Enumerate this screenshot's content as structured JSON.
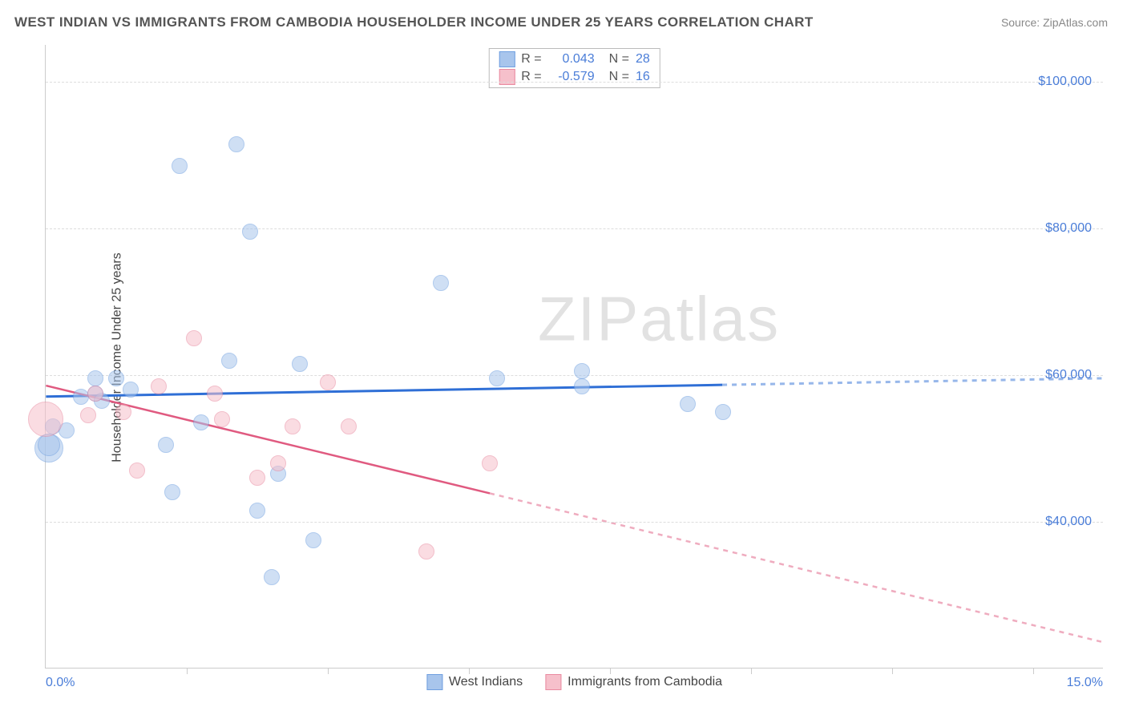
{
  "title": "WEST INDIAN VS IMMIGRANTS FROM CAMBODIA HOUSEHOLDER INCOME UNDER 25 YEARS CORRELATION CHART",
  "source": "Source: ZipAtlas.com",
  "watermark": "ZIPatlas",
  "y_axis_label": "Householder Income Under 25 years",
  "chart": {
    "type": "scatter",
    "xlim": [
      0,
      15
    ],
    "ylim": [
      20000,
      105000
    ],
    "y_ticks": [
      40000,
      60000,
      80000,
      100000
    ],
    "y_tick_labels": [
      "$40,000",
      "$60,000",
      "$80,000",
      "$100,000"
    ],
    "x_tick_left": "0.0%",
    "x_tick_right": "15.0%",
    "x_tick_marks": [
      2,
      4,
      6,
      8,
      10,
      12,
      14
    ],
    "grid_color": "#dddddd",
    "axis_color": "#cccccc",
    "background_color": "#ffffff",
    "tick_label_color": "#4a7dd8",
    "series": [
      {
        "name": "West Indians",
        "fill_color": "#a8c5ec",
        "stroke_color": "#6f9fe0",
        "fill_opacity": 0.55,
        "default_radius": 10,
        "points": [
          {
            "x": 0.05,
            "y": 50000,
            "r": 18
          },
          {
            "x": 0.05,
            "y": 50500,
            "r": 14
          },
          {
            "x": 0.1,
            "y": 53000
          },
          {
            "x": 0.3,
            "y": 52500
          },
          {
            "x": 0.5,
            "y": 57000
          },
          {
            "x": 0.7,
            "y": 57500
          },
          {
            "x": 0.8,
            "y": 56500
          },
          {
            "x": 0.7,
            "y": 59500
          },
          {
            "x": 1.0,
            "y": 59500
          },
          {
            "x": 1.2,
            "y": 58000
          },
          {
            "x": 1.7,
            "y": 50500
          },
          {
            "x": 1.8,
            "y": 44000
          },
          {
            "x": 1.9,
            "y": 88500
          },
          {
            "x": 2.2,
            "y": 53500
          },
          {
            "x": 2.6,
            "y": 62000
          },
          {
            "x": 2.7,
            "y": 91500
          },
          {
            "x": 2.9,
            "y": 79500
          },
          {
            "x": 3.0,
            "y": 41500
          },
          {
            "x": 3.2,
            "y": 32500
          },
          {
            "x": 3.3,
            "y": 46500
          },
          {
            "x": 3.6,
            "y": 61500
          },
          {
            "x": 3.8,
            "y": 37500
          },
          {
            "x": 5.6,
            "y": 72500
          },
          {
            "x": 6.4,
            "y": 59500
          },
          {
            "x": 7.6,
            "y": 58500
          },
          {
            "x": 7.6,
            "y": 60500
          },
          {
            "x": 9.1,
            "y": 56000
          },
          {
            "x": 9.6,
            "y": 55000
          }
        ],
        "trend": {
          "color": "#2f6fd6",
          "width": 3,
          "y_start": 57000,
          "y_end": 59500,
          "x_data_max": 9.6
        }
      },
      {
        "name": "Immigrants from Cambodia",
        "fill_color": "#f6c0cb",
        "stroke_color": "#e98aa0",
        "fill_opacity": 0.55,
        "default_radius": 10,
        "points": [
          {
            "x": 0.0,
            "y": 54000,
            "r": 22
          },
          {
            "x": 0.6,
            "y": 54500
          },
          {
            "x": 0.7,
            "y": 57500
          },
          {
            "x": 1.1,
            "y": 55000
          },
          {
            "x": 1.3,
            "y": 47000
          },
          {
            "x": 1.6,
            "y": 58500
          },
          {
            "x": 2.1,
            "y": 65000
          },
          {
            "x": 2.4,
            "y": 57500
          },
          {
            "x": 2.5,
            "y": 54000
          },
          {
            "x": 3.0,
            "y": 46000
          },
          {
            "x": 3.3,
            "y": 48000
          },
          {
            "x": 3.5,
            "y": 53000
          },
          {
            "x": 4.0,
            "y": 59000
          },
          {
            "x": 4.3,
            "y": 53000
          },
          {
            "x": 5.4,
            "y": 36000
          },
          {
            "x": 6.3,
            "y": 48000
          }
        ],
        "trend": {
          "color": "#e05a80",
          "width": 2.5,
          "y_start": 58500,
          "y_end": 23500,
          "x_data_max": 6.3
        }
      }
    ]
  },
  "stat_legend": [
    {
      "swatch_fill": "#a8c5ec",
      "swatch_stroke": "#6f9fe0",
      "r_label": "R =",
      "r_value": "0.043",
      "n_label": "N =",
      "n_value": "28"
    },
    {
      "swatch_fill": "#f6c0cb",
      "swatch_stroke": "#e98aa0",
      "r_label": "R =",
      "r_value": "-0.579",
      "n_label": "N =",
      "n_value": "16"
    }
  ],
  "bottom_legend": [
    {
      "swatch_fill": "#a8c5ec",
      "swatch_stroke": "#6f9fe0",
      "label": "West Indians"
    },
    {
      "swatch_fill": "#f6c0cb",
      "swatch_stroke": "#e98aa0",
      "label": "Immigrants from Cambodia"
    }
  ]
}
